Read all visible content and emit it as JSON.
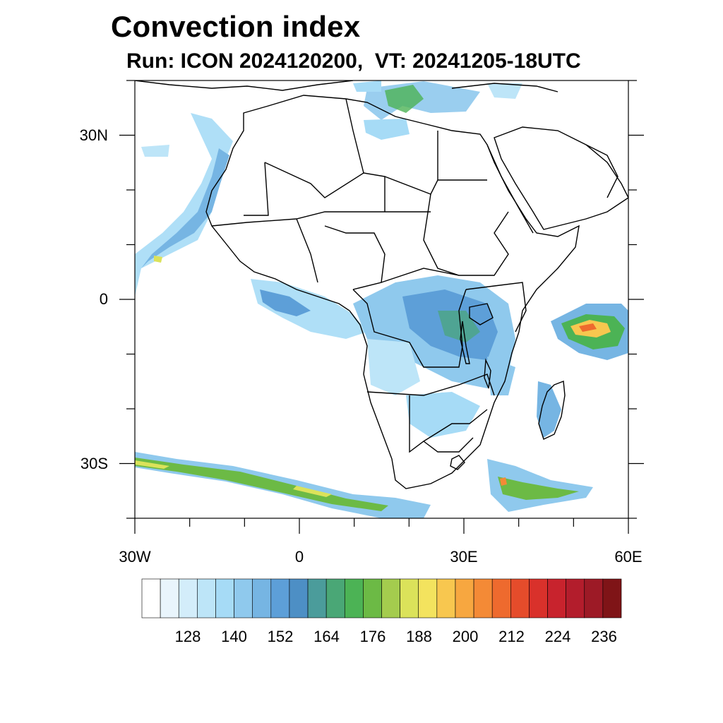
{
  "title": "Convection index",
  "subtitle": "Run: ICON 2024120200,  VT: 20241205-18UTC",
  "axes": {
    "lat_ticks": [
      {
        "value": 30,
        "label": "30N"
      },
      {
        "value": 0,
        "label": "0"
      },
      {
        "value": -30,
        "label": "30S"
      }
    ],
    "lon_ticks": [
      {
        "value": -30,
        "label": "30W"
      },
      {
        "value": 0,
        "label": "0"
      },
      {
        "value": 30,
        "label": "30E"
      },
      {
        "value": 60,
        "label": "60E"
      }
    ],
    "lon_range": [
      -30,
      60
    ],
    "lat_range": [
      -40,
      40
    ]
  },
  "colorbar": {
    "colors": [
      "#ffffff",
      "#e9f5fc",
      "#d3edfa",
      "#bde5f8",
      "#a6dbf6",
      "#8fc9ed",
      "#76b5e3",
      "#5d9fd8",
      "#4d8fc5",
      "#4b9c9b",
      "#4aa776",
      "#4cb355",
      "#6cba45",
      "#a4cc4e",
      "#dbe25a",
      "#f3e35e",
      "#f8c74f",
      "#f7a740",
      "#f48a36",
      "#ee6a2e",
      "#e54c2b",
      "#d9312b",
      "#c8232d",
      "#b31d2c",
      "#9d1a26",
      "#7f1417"
    ],
    "labels": [
      "128",
      "140",
      "152",
      "164",
      "176",
      "188",
      "200",
      "212",
      "224",
      "236"
    ]
  },
  "map": {
    "coastline_color": "#000000",
    "convection_cells": [
      {
        "lon": 18,
        "lat": 37,
        "level": 9
      },
      {
        "lon": 14,
        "lat": 31,
        "level": 6
      },
      {
        "lon": -18,
        "lat": 28,
        "level": 5
      },
      {
        "lon": -25,
        "lat": 8,
        "level": 8
      },
      {
        "lon": -23,
        "lat": 6,
        "level": 6
      },
      {
        "lon": -14,
        "lat": 12,
        "level": 6
      },
      {
        "lon": -8,
        "lat": 2,
        "level": 7
      },
      {
        "lon": 2,
        "lat": -2,
        "level": 5
      },
      {
        "lon": 25,
        "lat": -2,
        "level": 9
      },
      {
        "lon": 30,
        "lat": -3,
        "level": 11
      },
      {
        "lon": 33,
        "lat": -1,
        "level": 8
      },
      {
        "lon": 55,
        "lat": -5,
        "level": 14
      },
      {
        "lon": 52,
        "lat": -6,
        "level": 12
      },
      {
        "lon": 15,
        "lat": -12,
        "level": 5
      },
      {
        "lon": 27,
        "lat": -20,
        "level": 6
      },
      {
        "lon": 44,
        "lat": -22,
        "level": 6
      },
      {
        "lon": -25,
        "lat": -30,
        "level": 10
      },
      {
        "lon": 0,
        "lat": -34,
        "level": 9
      },
      {
        "lon": 15,
        "lat": -38,
        "level": 11
      },
      {
        "lon": 38,
        "lat": -34,
        "level": 12
      },
      {
        "lon": 45,
        "lat": -35,
        "level": 10
      }
    ]
  }
}
